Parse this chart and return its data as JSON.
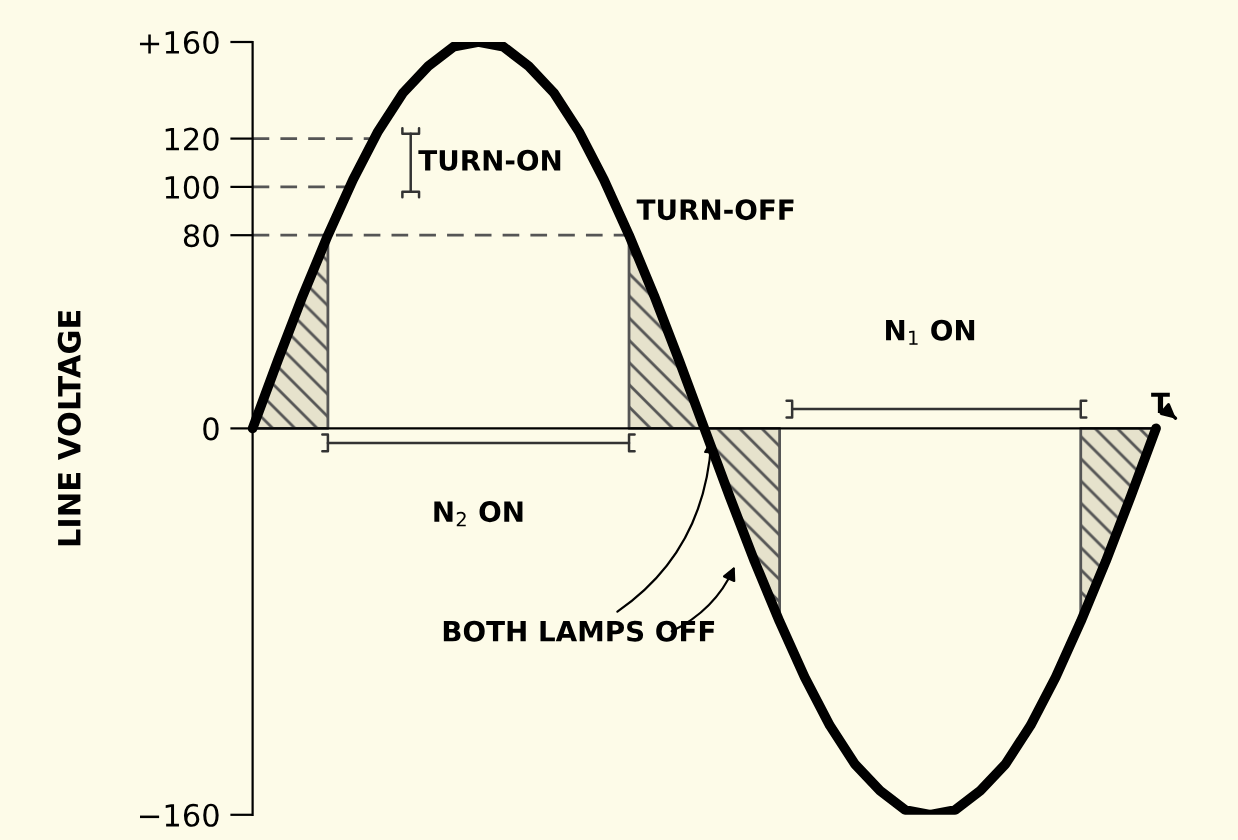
{
  "chart_data": {
    "type": "line",
    "ylabel": "LINE VOLTAGE",
    "categories": [
      null,
      null,
      null,
      null,
      null,
      null,
      null,
      null,
      null,
      null,
      null,
      null,
      null,
      null,
      null,
      null,
      null,
      null,
      null,
      null,
      null,
      null,
      null,
      null,
      null,
      null,
      null,
      null,
      null,
      null,
      null,
      null,
      null,
      null,
      null,
      null,
      null
    ],
    "series": [
      {
        "type": "area",
        "color": "#555555",
        "values": [
          0,
          28,
          55,
          80,
          null,
          null,
          null,
          null,
          null,
          null,
          null,
          null,
          null,
          null,
          null,
          80,
          55,
          28,
          0,
          -28,
          -55,
          -80,
          null,
          null,
          null,
          null,
          null,
          null,
          null,
          null,
          null,
          null,
          null,
          -80,
          -55,
          -28,
          0
        ]
      },
      {
        "type": "line",
        "color": "#555555",
        "line_style": "dashed",
        "values": [
          120,
          120,
          120,
          120,
          120,
          120,
          null,
          null,
          null,
          null,
          null,
          null,
          null,
          null,
          null,
          null,
          null,
          null,
          null,
          null,
          null,
          null,
          null,
          null,
          null,
          null,
          null,
          null,
          null,
          null,
          null,
          null,
          null,
          null,
          null,
          null,
          null
        ]
      },
      {
        "type": "line",
        "color": "#555555",
        "line_style": "dashed",
        "values": [
          100,
          100,
          100,
          100,
          100,
          null,
          null,
          null,
          null,
          null,
          null,
          null,
          null,
          null,
          null,
          null,
          null,
          null,
          null,
          null,
          null,
          null,
          null,
          null,
          null,
          null,
          null,
          null,
          null,
          null,
          null,
          null,
          null,
          null,
          null,
          null,
          null
        ]
      },
      {
        "type": "line",
        "color": "#555555",
        "line_style": "dashed",
        "values": [
          80,
          80,
          80,
          80,
          80,
          80,
          80,
          80,
          80,
          80,
          80,
          80,
          80,
          80,
          80,
          80,
          null,
          null,
          null,
          null,
          null,
          null,
          null,
          null,
          null,
          null,
          null,
          null,
          null,
          null,
          null,
          null,
          null,
          null,
          null,
          null,
          null
        ]
      },
      {
        "color": "#000000",
        "line_style": "solid",
        "values": [
          0,
          28,
          55,
          80,
          103,
          123,
          139,
          150,
          158,
          160,
          158,
          150,
          139,
          123,
          103,
          80,
          55,
          28,
          0,
          -28,
          -55,
          -80,
          -103,
          -123,
          -139,
          -150,
          -158,
          -160,
          -158,
          -150,
          -139,
          -123,
          -103,
          -80,
          -55,
          -28,
          0
        ]
      }
    ],
    "ylim": [
      -160,
      160
    ],
    "yticks": [
      {
        "value": 160,
        "label": "+160"
      },
      120,
      100,
      80,
      0,
      {
        "value": -160,
        "label": "−160"
      }
    ],
    "tick_labels": "y",
    "grid": false,
    "legend": false,
    "annotations": [
      "TURN-ON",
      "TURN-OFF",
      "N$_{2}$ ON",
      "N$_{1}$ ON",
      "BOTH LAMPS OFF",
      "T"
    ]
  }
}
